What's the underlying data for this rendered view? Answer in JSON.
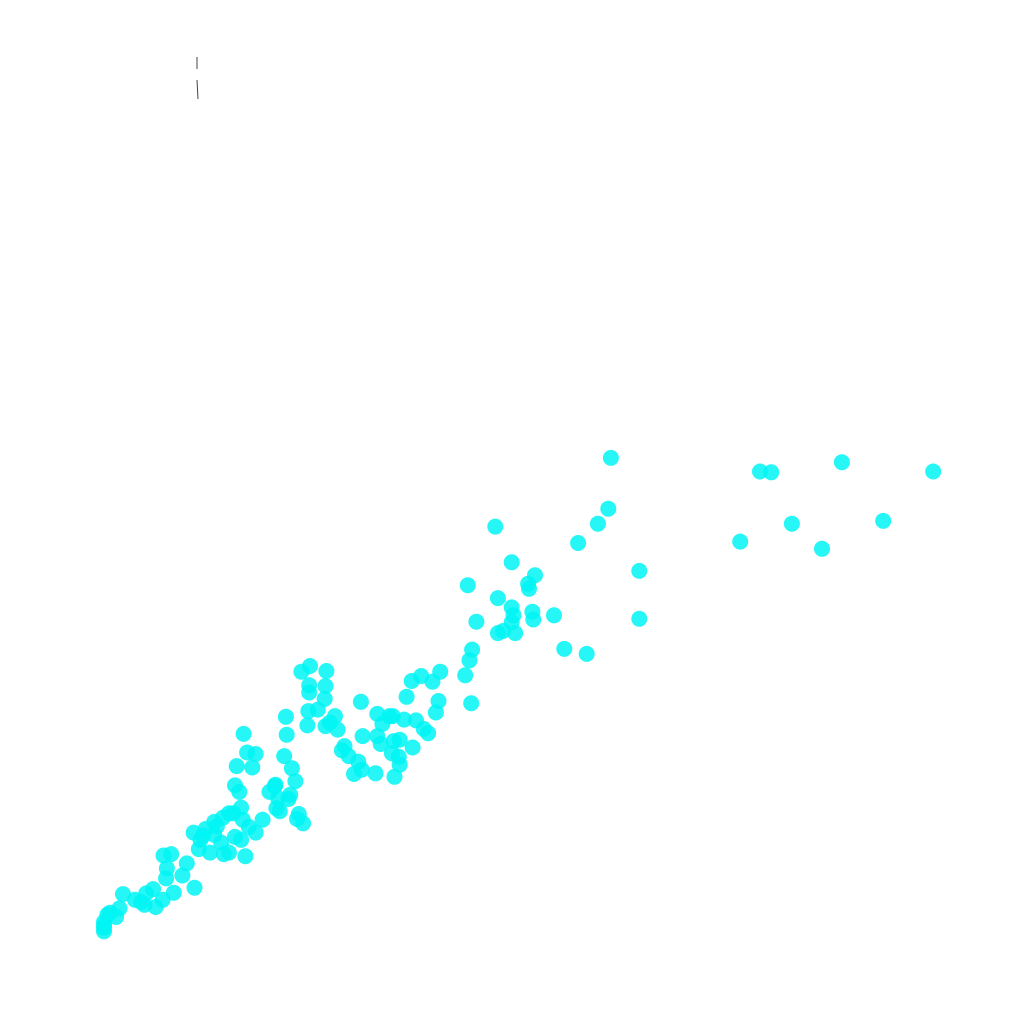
{
  "chart_data": {
    "type": "scatter",
    "title": "",
    "xlabel": "",
    "ylabel": "",
    "grid": false,
    "legend": "none",
    "xlim": [
      0,
      1000
    ],
    "ylim": [
      0,
      100
    ],
    "colors": {
      "point": "#00f5f5",
      "mark": "#444444"
    },
    "series": [
      {
        "points": [
          [
            0,
            0.8
          ],
          [
            0,
            1.3
          ],
          [
            0,
            2.1
          ],
          [
            0,
            1.6
          ],
          [
            7,
            3.4
          ],
          [
            18,
            4.0
          ],
          [
            14,
            2.8
          ],
          [
            4,
            3.1
          ],
          [
            22,
            6.0
          ],
          [
            36,
            5.2
          ],
          [
            49,
            6.1
          ],
          [
            47,
            4.5
          ],
          [
            43,
            4.9
          ],
          [
            60,
            4.2
          ],
          [
            68,
            5.2
          ],
          [
            57,
            6.7
          ],
          [
            72,
            8.2
          ],
          [
            81,
            6.2
          ],
          [
            73,
            9.6
          ],
          [
            69,
            11.4
          ],
          [
            78,
            11.6
          ],
          [
            91,
            8.6
          ],
          [
            96,
            10.3
          ],
          [
            105,
            6.9
          ],
          [
            110,
            12.3
          ],
          [
            123,
            11.8
          ],
          [
            104,
            14.6
          ],
          [
            128,
            14.3
          ],
          [
            131,
            15.5
          ],
          [
            118,
            15.1
          ],
          [
            145,
            17.3
          ],
          [
            139,
            11.6
          ],
          [
            152,
            14.0
          ],
          [
            164,
            11.3
          ],
          [
            159,
            13.6
          ],
          [
            168,
            15.4
          ],
          [
            176,
            14.6
          ],
          [
            184,
            16.4
          ],
          [
            145,
            11.8
          ],
          [
            136,
            13.2
          ],
          [
            112,
            13.6
          ],
          [
            128,
            16.1
          ],
          [
            138,
            16.7
          ],
          [
            115,
            14.2
          ],
          [
            159,
            18.1
          ],
          [
            161,
            16.4
          ],
          [
            152,
            21.2
          ],
          [
            150,
            17.3
          ],
          [
            157,
            20.3
          ],
          [
            154,
            23.9
          ],
          [
            166,
            25.8
          ],
          [
            172,
            23.7
          ],
          [
            176,
            25.6
          ],
          [
            162,
            28.4
          ],
          [
            192,
            20.3
          ],
          [
            199,
            21.3
          ],
          [
            202,
            19.4
          ],
          [
            200,
            18.0
          ],
          [
            204,
            17.6
          ],
          [
            214,
            19.3
          ],
          [
            222,
            21.8
          ],
          [
            209,
            25.3
          ],
          [
            212,
            28.3
          ],
          [
            211,
            30.8
          ],
          [
            238,
            35.2
          ],
          [
            237,
            31.6
          ],
          [
            236,
            29.6
          ],
          [
            218,
            23.6
          ],
          [
            216,
            19.9
          ],
          [
            224,
            16.5
          ],
          [
            231,
            15.9
          ],
          [
            226,
            17.2
          ],
          [
            198,
            21.1
          ],
          [
            238,
            34.2
          ],
          [
            229,
            37.1
          ],
          [
            239,
            37.9
          ],
          [
            258,
            37.2
          ],
          [
            257,
            35.1
          ],
          [
            256,
            33.3
          ],
          [
            248,
            31.8
          ],
          [
            257,
            29.5
          ],
          [
            262,
            30.0
          ],
          [
            268,
            30.9
          ],
          [
            271,
            29.0
          ],
          [
            276,
            26.1
          ],
          [
            279,
            26.7
          ],
          [
            284,
            25.3
          ],
          [
            290,
            22.8
          ],
          [
            295,
            24.5
          ],
          [
            299,
            23.4
          ],
          [
            315,
            22.9
          ],
          [
            317,
            28.1
          ],
          [
            323,
            29.8
          ],
          [
            335,
            30.9
          ],
          [
            336,
            27.4
          ],
          [
            348,
            30.4
          ],
          [
            351,
            33.6
          ],
          [
            357,
            35.8
          ],
          [
            368,
            36.5
          ],
          [
            371,
            29.1
          ],
          [
            381,
            35.7
          ],
          [
            390,
            37.1
          ],
          [
            385,
            31.4
          ],
          [
            362,
            30.3
          ],
          [
            331,
            30.9
          ],
          [
            298,
            32.9
          ],
          [
            317,
            31.2
          ],
          [
            337,
            22.4
          ],
          [
            321,
            27.0
          ],
          [
            300,
            28.1
          ],
          [
            334,
            25.7
          ],
          [
            343,
            24.1
          ],
          [
            342,
            25.2
          ],
          [
            343,
            27.6
          ],
          [
            358,
            26.5
          ],
          [
            376,
            28.5
          ],
          [
            388,
            33.0
          ],
          [
            426,
            32.7
          ],
          [
            419,
            36.6
          ],
          [
            424,
            38.7
          ],
          [
            427,
            40.2
          ],
          [
            432,
            44.1
          ],
          [
            457,
            47.4
          ],
          [
            457,
            42.5
          ],
          [
            473,
            44.0
          ],
          [
            473,
            46.1
          ],
          [
            475,
            45.0
          ],
          [
            477,
            42.5
          ],
          [
            498,
            44.4
          ],
          [
            497,
            45.5
          ],
          [
            522,
            45.0
          ],
          [
            463,
            42.8
          ],
          [
            493,
            48.7
          ],
          [
            492,
            49.4
          ],
          [
            500,
            50.6
          ],
          [
            473,
            52.4
          ],
          [
            422,
            49.2
          ],
          [
            534,
            40.3
          ],
          [
            560,
            39.6
          ],
          [
            621,
            51.2
          ],
          [
            621,
            44.5
          ],
          [
            550,
            55.1
          ],
          [
            573,
            57.8
          ],
          [
            585,
            59.9
          ],
          [
            454,
            57.4
          ],
          [
            588,
            67.0
          ],
          [
            738,
            55.3
          ],
          [
            798,
            57.8
          ],
          [
            833,
            54.3
          ],
          [
            904,
            58.2
          ],
          [
            761,
            65.1
          ],
          [
            774,
            65.0
          ],
          [
            856,
            66.4
          ],
          [
            962,
            65.1
          ]
        ]
      }
    ]
  }
}
